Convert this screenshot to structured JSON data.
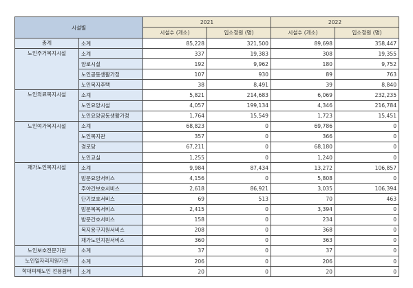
{
  "table": {
    "header": {
      "facility_label": "시설별",
      "years": [
        "2021",
        "2022"
      ],
      "sub_columns": [
        "시설수 (개소)",
        "입소정원 (명)",
        "시설수 (개소)",
        "입소정원 (명)"
      ]
    },
    "groups": [
      {
        "category": "총계",
        "rows": [
          {
            "sub": "소계",
            "v": [
              "85,228",
              "321,500",
              "89,698",
              "358,447"
            ]
          }
        ]
      },
      {
        "category": "노인주거복지시설",
        "rows": [
          {
            "sub": "소계",
            "v": [
              "337",
              "19,383",
              "308",
              "19,355"
            ]
          },
          {
            "sub": "양로시설",
            "v": [
              "192",
              "9,962",
              "180",
              "9,752"
            ]
          },
          {
            "sub": "노인공동생활가정",
            "v": [
              "107",
              "930",
              "89",
              "763"
            ]
          },
          {
            "sub": "노인복지주택",
            "v": [
              "38",
              "8,491",
              "39",
              "8,840"
            ]
          }
        ]
      },
      {
        "category": "노인의료복지시설",
        "rows": [
          {
            "sub": "소계",
            "v": [
              "5,821",
              "214,683",
              "6,069",
              "232,235"
            ]
          },
          {
            "sub": "노인요양시설",
            "v": [
              "4,057",
              "199,134",
              "4,346",
              "216,784"
            ]
          },
          {
            "sub": "노인요양공동생활가정",
            "v": [
              "1,764",
              "15,549",
              "1,723",
              "15,451"
            ]
          }
        ]
      },
      {
        "category": "노인여가복지시설",
        "rows": [
          {
            "sub": "소계",
            "v": [
              "68,823",
              "0",
              "69,786",
              "0"
            ]
          },
          {
            "sub": "노인복지관",
            "v": [
              "357",
              "0",
              "366",
              "0"
            ]
          },
          {
            "sub": "경로당",
            "v": [
              "67,211",
              "0",
              "68,180",
              "0"
            ]
          },
          {
            "sub": "노인교실",
            "v": [
              "1,255",
              "0",
              "1,240",
              "0"
            ]
          }
        ]
      },
      {
        "category": "재가노인복지시설",
        "rows": [
          {
            "sub": "소계",
            "v": [
              "9,984",
              "87,434",
              "13,272",
              "106,857"
            ]
          },
          {
            "sub": "방문요양서비스",
            "v": [
              "4,156",
              "0",
              "5,808",
              "0"
            ]
          },
          {
            "sub": "주야간보호서비스",
            "v": [
              "2,618",
              "86,921",
              "3,035",
              "106,394"
            ]
          },
          {
            "sub": "단기보호서비스",
            "v": [
              "69",
              "513",
              "70",
              "463"
            ]
          },
          {
            "sub": "방문목욕서비스",
            "v": [
              "2,415",
              "0",
              "3,394",
              "0"
            ]
          },
          {
            "sub": "방문간호서비스",
            "v": [
              "158",
              "0",
              "234",
              "0"
            ]
          },
          {
            "sub": "복지용구지원서비스",
            "v": [
              "208",
              "0",
              "368",
              "0"
            ]
          },
          {
            "sub": "재가노인지원서비스",
            "v": [
              "360",
              "0",
              "363",
              "0"
            ]
          }
        ]
      },
      {
        "category": "노인보호전문기관",
        "rows": [
          {
            "sub": "소계",
            "v": [
              "37",
              "0",
              "37",
              "0"
            ]
          }
        ]
      },
      {
        "category": "노인일자리지원기관",
        "rows": [
          {
            "sub": "소계",
            "v": [
              "206",
              "0",
              "206",
              "0"
            ]
          }
        ]
      },
      {
        "category": "학대피해노인 전용쉼터",
        "rows": [
          {
            "sub": "소계",
            "v": [
              "20",
              "0",
              "20",
              "0"
            ]
          }
        ]
      }
    ]
  }
}
